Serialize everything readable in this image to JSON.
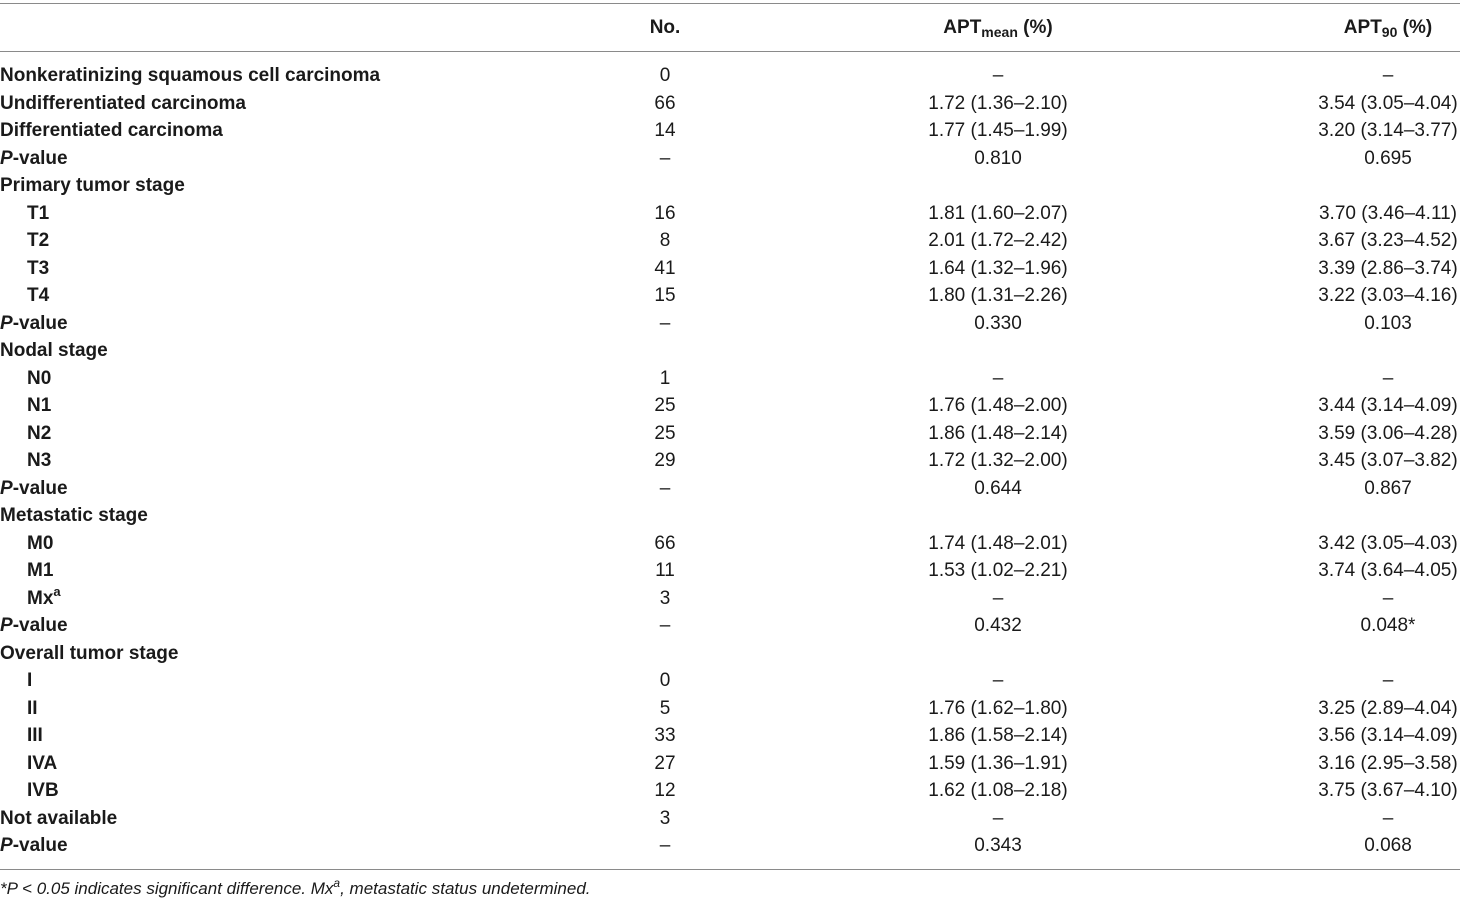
{
  "header": {
    "no": "No.",
    "apt_mean": {
      "base": "APT",
      "sub": "mean",
      "suffix": " (%)"
    },
    "apt_90": {
      "base": "APT",
      "sub": "90",
      "suffix": " (%)"
    }
  },
  "rows": [
    {
      "kind": "group",
      "label": "Nonkeratinizing squamous cell carcinoma",
      "no": "0",
      "mean": "–",
      "p90": "–"
    },
    {
      "kind": "group",
      "label": "Undifferentiated carcinoma",
      "no": "66",
      "mean": "1.72 (1.36–2.10)",
      "p90": "3.54 (3.05–4.04)"
    },
    {
      "kind": "group",
      "label": "Differentiated carcinoma",
      "no": "14",
      "mean": "1.77 (1.45–1.99)",
      "p90": "3.20 (3.14–3.77)"
    },
    {
      "kind": "pval",
      "label": "-value",
      "italic": "P",
      "no": "–",
      "mean": "0.810",
      "p90": "0.695"
    },
    {
      "kind": "group",
      "label": "Primary tumor stage",
      "no": "",
      "mean": "",
      "p90": ""
    },
    {
      "kind": "sub",
      "label": "T1",
      "no": "16",
      "mean": "1.81 (1.60–2.07)",
      "p90": "3.70 (3.46–4.11)"
    },
    {
      "kind": "sub",
      "label": "T2",
      "no": "8",
      "mean": "2.01 (1.72–2.42)",
      "p90": "3.67 (3.23–4.52)"
    },
    {
      "kind": "sub",
      "label": "T3",
      "no": "41",
      "mean": "1.64 (1.32–1.96)",
      "p90": "3.39 (2.86–3.74)"
    },
    {
      "kind": "sub",
      "label": "T4",
      "no": "15",
      "mean": "1.80 (1.31–2.26)",
      "p90": "3.22 (3.03–4.16)"
    },
    {
      "kind": "pval",
      "label": "-value",
      "italic": "P",
      "no": "–",
      "mean": "0.330",
      "p90": "0.103"
    },
    {
      "kind": "group",
      "label": "Nodal stage",
      "no": "",
      "mean": "",
      "p90": ""
    },
    {
      "kind": "sub",
      "label": "N0",
      "no": "1",
      "mean": "–",
      "p90": "–"
    },
    {
      "kind": "sub",
      "label": "N1",
      "no": "25",
      "mean": "1.76 (1.48–2.00)",
      "p90": "3.44 (3.14–4.09)"
    },
    {
      "kind": "sub",
      "label": "N2",
      "no": "25",
      "mean": "1.86 (1.48–2.14)",
      "p90": "3.59 (3.06–4.28)"
    },
    {
      "kind": "sub",
      "label": "N3",
      "no": "29",
      "mean": "1.72 (1.32–2.00)",
      "p90": "3.45 (3.07–3.82)"
    },
    {
      "kind": "pval",
      "label": "-value",
      "italic": "P",
      "no": "–",
      "mean": "0.644",
      "p90": "0.867"
    },
    {
      "kind": "group",
      "label": "Metastatic stage",
      "no": "",
      "mean": "",
      "p90": ""
    },
    {
      "kind": "sub",
      "label": "M0",
      "no": "66",
      "mean": "1.74 (1.48–2.01)",
      "p90": "3.42 (3.05–4.03)"
    },
    {
      "kind": "sub",
      "label": "M1",
      "no": "11",
      "mean": "1.53 (1.02–2.21)",
      "p90": "3.74 (3.64–4.05)"
    },
    {
      "kind": "sub",
      "label": "Mx",
      "sup": "a",
      "no": "3",
      "mean": "–",
      "p90": "–"
    },
    {
      "kind": "pval",
      "label": "-value",
      "italic": "P",
      "no": "–",
      "mean": "0.432",
      "p90": "0.048*"
    },
    {
      "kind": "group",
      "label": "Overall tumor stage",
      "no": "",
      "mean": "",
      "p90": ""
    },
    {
      "kind": "sub",
      "label": "I",
      "no": "0",
      "mean": "–",
      "p90": "–"
    },
    {
      "kind": "sub",
      "label": "II",
      "no": "5",
      "mean": "1.76 (1.62–1.80)",
      "p90": "3.25 (2.89–4.04)"
    },
    {
      "kind": "sub",
      "label": "III",
      "no": "33",
      "mean": "1.86 (1.58–2.14)",
      "p90": "3.56 (3.14–4.09)"
    },
    {
      "kind": "sub",
      "label": "IVA",
      "no": "27",
      "mean": "1.59 (1.36–1.91)",
      "p90": "3.16 (2.95–3.58)"
    },
    {
      "kind": "sub",
      "label": "IVB",
      "no": "12",
      "mean": "1.62 (1.08–2.18)",
      "p90": "3.75 (3.67–4.10)"
    },
    {
      "kind": "group",
      "label": "Not available",
      "no": "3",
      "mean": "–",
      "p90": "–"
    },
    {
      "kind": "pval",
      "label": "-value",
      "italic": "P",
      "no": "–",
      "mean": "0.343",
      "p90": "0.068"
    }
  ],
  "footnote": {
    "part1": "*P < 0.05 indicates significant difference. Mx",
    "sup": "a",
    "part2": ", metastatic status undetermined."
  }
}
